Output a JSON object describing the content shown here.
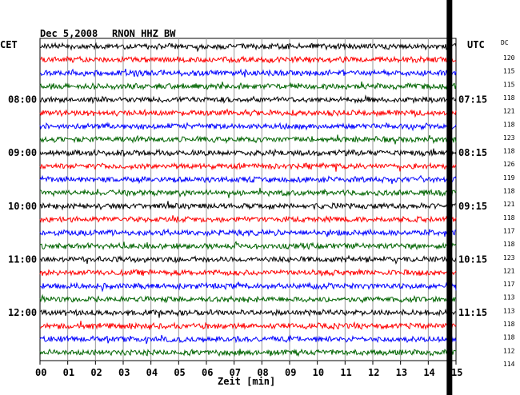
{
  "header": {
    "date": "Dec 5,2008",
    "station": "RNON HHZ BW",
    "left_zone": "CET",
    "right_zone": "UTC",
    "dc_label": "DC"
  },
  "colors": {
    "black": "#000000",
    "red": "#ff0000",
    "blue": "#0000ff",
    "green": "#006400"
  },
  "chart_data": {
    "type": "line",
    "title": "Dec 5,2008   RNON HHZ BW",
    "xlabel": "Zeit [min]",
    "xlim": [
      0,
      15
    ],
    "x_ticks": [
      "00",
      "01",
      "02",
      "03",
      "04",
      "05",
      "06",
      "07",
      "08",
      "09",
      "10",
      "11",
      "12",
      "13",
      "14",
      "15"
    ],
    "left_time_labels": [
      {
        "row": 4,
        "label": "08:00"
      },
      {
        "row": 8,
        "label": "09:00"
      },
      {
        "row": 12,
        "label": "10:00"
      },
      {
        "row": 16,
        "label": "11:00"
      },
      {
        "row": 20,
        "label": "12:00"
      }
    ],
    "right_time_labels": [
      {
        "row": 4,
        "label": "07:15"
      },
      {
        "row": 8,
        "label": "08:15"
      },
      {
        "row": 12,
        "label": "09:15"
      },
      {
        "row": 16,
        "label": "10:15"
      },
      {
        "row": 20,
        "label": "11:15"
      }
    ],
    "dc_values": [
      "120",
      "115",
      "115",
      "118",
      "121",
      "118",
      "123",
      "118",
      "126",
      "119",
      "118",
      "121",
      "118",
      "117",
      "118",
      "123",
      "121",
      "117",
      "113",
      "113",
      "118",
      "118",
      "112",
      "114"
    ],
    "series_colors": [
      "black",
      "red",
      "blue",
      "green"
    ],
    "marker_minute": 14.75
  }
}
